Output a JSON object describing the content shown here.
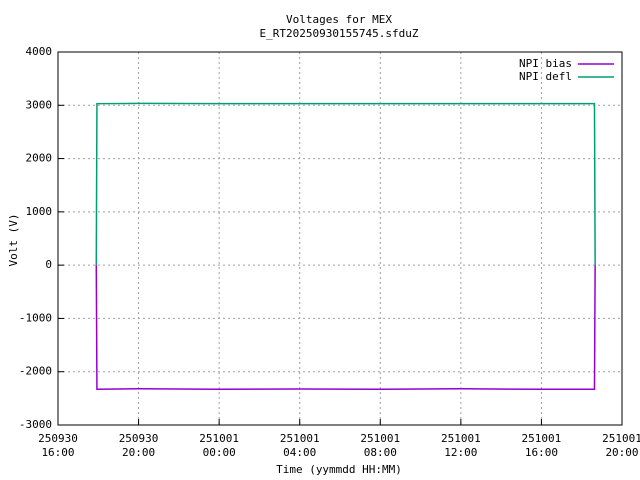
{
  "chart_data": {
    "type": "line",
    "title": "Voltages for MEX",
    "subtitle": "E_RT20250930155745.sfduZ",
    "x_label": "Time (yymmdd HH:MM)",
    "y_label": "Volt (V)",
    "x": [
      "250930 17:54",
      "250930 17:56",
      "250930 20:00",
      "251001 00:00",
      "251001 04:00",
      "251001 08:00",
      "251001 12:00",
      "251001 16:00",
      "251001 18:38",
      "251001 18:40"
    ],
    "series": [
      {
        "name": "NPI bias",
        "color": "#9400d3",
        "values": [
          0,
          -2330,
          -2320,
          -2330,
          -2325,
          -2330,
          -2320,
          -2330,
          -2330,
          0
        ]
      },
      {
        "name": "NPI defl",
        "color": "#009e73",
        "values": [
          0,
          3030,
          3035,
          3030,
          3030,
          3030,
          3030,
          3030,
          3030,
          0
        ]
      }
    ],
    "xlim": [
      "250930 16:00",
      "251001 20:00"
    ],
    "xticks": [
      "250930 16:00",
      "250930 20:00",
      "251001 00:00",
      "251001 04:00",
      "251001 08:00",
      "251001 12:00",
      "251001 16:00",
      "251001 20:00"
    ],
    "ylim": [
      -3000,
      4000
    ],
    "yticks": [
      -3000,
      -2000,
      -1000,
      0,
      1000,
      2000,
      3000,
      4000
    ],
    "grid": true,
    "legend": "top-right"
  }
}
